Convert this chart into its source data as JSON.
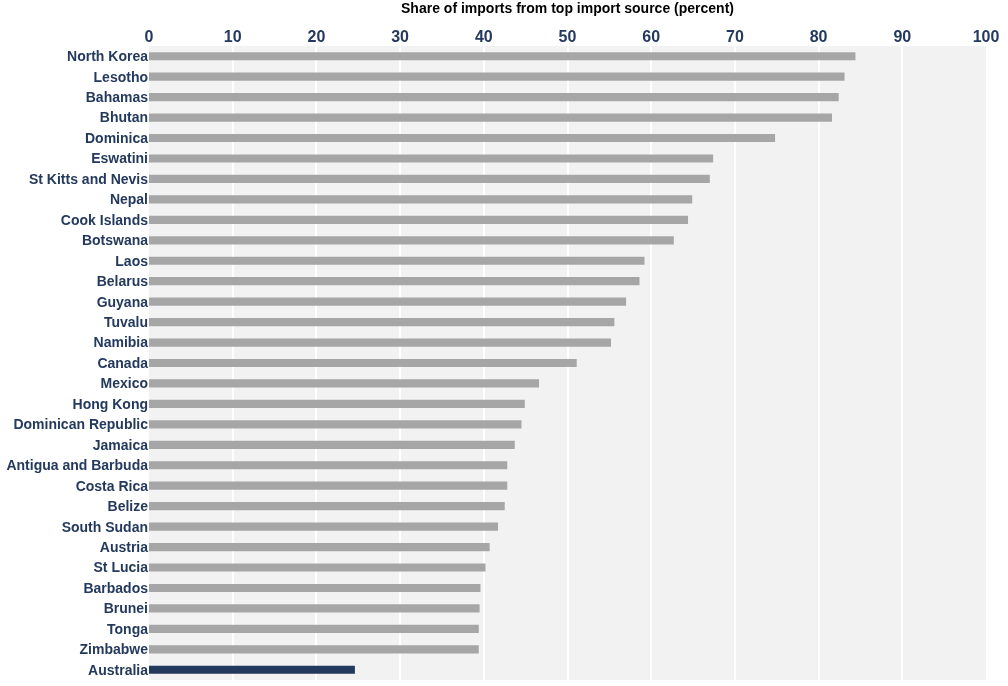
{
  "chart_data": {
    "type": "bar",
    "orientation": "horizontal",
    "xlabel": "Share of imports from top import source (percent)",
    "categories": [
      "North Korea",
      "Lesotho",
      "Bahamas",
      "Bhutan",
      "Dominica",
      "Eswatini",
      "St Kitts and Nevis",
      "Nepal",
      "Cook Islands",
      "Botswana",
      "Laos",
      "Belarus",
      "Guyana",
      "Tuvalu",
      "Namibia",
      "Canada",
      "Mexico",
      "Hong Kong",
      "Dominican Republic",
      "Jamaica",
      "Antigua and Barbuda",
      "Costa Rica",
      "Belize",
      "South Sudan",
      "Austria",
      "St Lucia",
      "Barbados",
      "Brunei",
      "Tonga",
      "Zimbabwe",
      "Australia"
    ],
    "values": [
      84.4,
      83.1,
      82.4,
      81.6,
      74.8,
      67.4,
      67.0,
      64.9,
      64.4,
      62.7,
      59.2,
      58.6,
      57.0,
      55.6,
      55.2,
      51.1,
      46.6,
      44.9,
      44.5,
      43.7,
      42.8,
      42.8,
      42.5,
      41.7,
      40.7,
      40.2,
      39.6,
      39.5,
      39.4,
      39.4,
      24.6
    ],
    "colors": [
      "#a6a6a6",
      "#a6a6a6",
      "#a6a6a6",
      "#a6a6a6",
      "#a6a6a6",
      "#a6a6a6",
      "#a6a6a6",
      "#a6a6a6",
      "#a6a6a6",
      "#a6a6a6",
      "#a6a6a6",
      "#a6a6a6",
      "#a6a6a6",
      "#a6a6a6",
      "#a6a6a6",
      "#a6a6a6",
      "#a6a6a6",
      "#a6a6a6",
      "#a6a6a6",
      "#a6a6a6",
      "#a6a6a6",
      "#a6a6a6",
      "#a6a6a6",
      "#a6a6a6",
      "#a6a6a6",
      "#a6a6a6",
      "#a6a6a6",
      "#a6a6a6",
      "#a6a6a6",
      "#a6a6a6",
      "#23395d"
    ],
    "xlim": [
      0,
      100
    ],
    "xticks": [
      0,
      10,
      20,
      30,
      40,
      50,
      60,
      70,
      80,
      90,
      100
    ],
    "grid": "x"
  }
}
